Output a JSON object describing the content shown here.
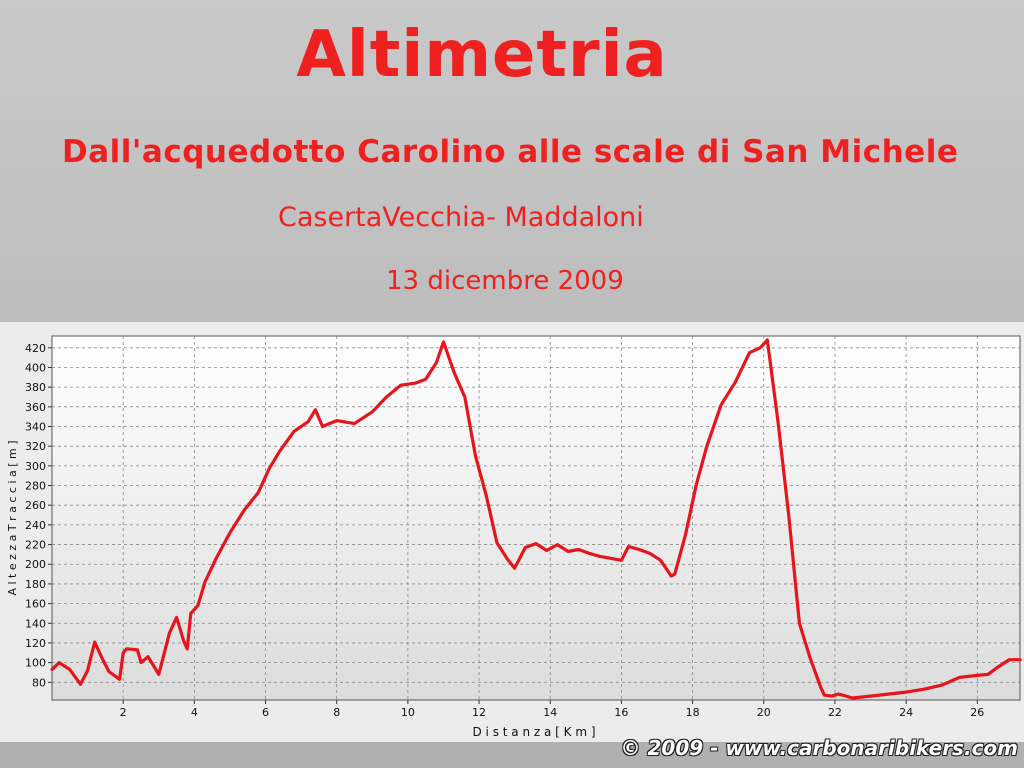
{
  "header": {
    "title": "Altimetria",
    "subtitle": "Dall'acquedotto Carolino  alle scale di San Michele",
    "place": "CasertaVecchia- Maddaloni",
    "date": "13 dicembre 2009"
  },
  "footer": {
    "copyright": "© 2009 - www.carbonaribikers.com"
  },
  "colors": {
    "line": "#e8141b",
    "text": "#ef2020"
  },
  "chart_data": {
    "type": "line",
    "title": "",
    "xlabel": "D i s t a n z a   [ K m ]",
    "ylabel": "A l t e z z a   T r a c c i a   [ m ]",
    "xlim": [
      0,
      27.2
    ],
    "ylim": [
      62,
      432
    ],
    "xticks": [
      2,
      4,
      6,
      8,
      10,
      12,
      14,
      16,
      18,
      20,
      22,
      24,
      26
    ],
    "yticks": [
      80,
      100,
      120,
      140,
      160,
      180,
      200,
      220,
      240,
      260,
      280,
      300,
      320,
      340,
      360,
      380,
      400,
      420
    ],
    "grid": true,
    "series": [
      {
        "name": "",
        "x": [
          0,
          0.2,
          0.5,
          0.8,
          1.0,
          1.2,
          1.4,
          1.6,
          1.9,
          2.0,
          2.1,
          2.4,
          2.5,
          2.7,
          3.0,
          3.3,
          3.5,
          3.7,
          3.8,
          3.9,
          4.1,
          4.3,
          4.6,
          5.0,
          5.4,
          5.8,
          6.1,
          6.4,
          6.8,
          7.2,
          7.4,
          7.6,
          8.0,
          8.5,
          9.0,
          9.4,
          9.8,
          10.2,
          10.5,
          10.8,
          11.0,
          11.3,
          11.6,
          11.9,
          12.2,
          12.5,
          12.8,
          13.0,
          13.3,
          13.6,
          13.9,
          14.2,
          14.5,
          14.8,
          15.1,
          15.4,
          15.7,
          16.0,
          16.2,
          16.5,
          16.8,
          17.1,
          17.4,
          17.5,
          17.8,
          18.1,
          18.4,
          18.8,
          19.2,
          19.6,
          19.9,
          20.1,
          20.4,
          20.7,
          21.0,
          21.3,
          21.6,
          21.7,
          21.9,
          22.1,
          22.5,
          23.0,
          23.5,
          24.0,
          24.5,
          25.0,
          25.5,
          26.0,
          26.3,
          26.6,
          26.9,
          27.2
        ],
        "values": [
          93,
          100,
          93,
          78,
          92,
          121,
          105,
          91,
          83,
          110,
          114,
          113,
          100,
          106,
          88,
          130,
          146,
          122,
          114,
          150,
          158,
          182,
          205,
          232,
          255,
          273,
          297,
          315,
          335,
          345,
          357,
          340,
          346,
          343,
          355,
          370,
          382,
          384,
          388,
          405,
          426,
          395,
          370,
          310,
          270,
          222,
          205,
          196,
          217,
          221,
          214,
          220,
          213,
          215,
          211,
          208,
          206,
          204,
          218,
          215,
          211,
          204,
          188,
          190,
          230,
          280,
          320,
          362,
          385,
          415,
          420,
          428,
          345,
          250,
          140,
          105,
          75,
          67,
          66,
          68,
          64,
          66,
          68,
          70,
          73,
          77,
          85,
          87,
          88,
          96,
          103,
          103
        ]
      }
    ]
  }
}
